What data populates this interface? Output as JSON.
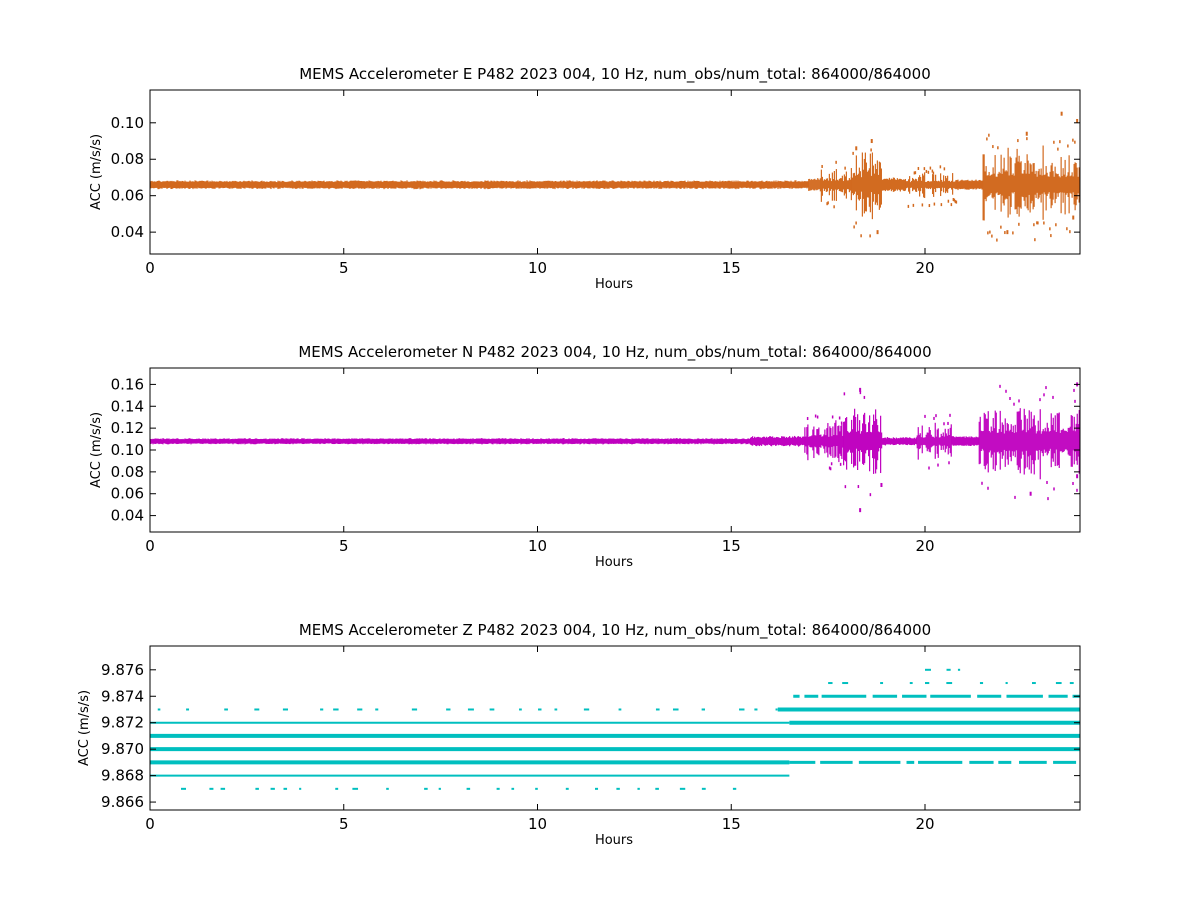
{
  "figure": {
    "background": "#ffffff"
  },
  "chart_data": [
    {
      "type": "scatter",
      "title": "MEMS Accelerometer E P482 2023 004, 10 Hz, num_obs/num_total: 864000/864000",
      "xlabel": "Hours",
      "ylabel": "ACC (m/s/s)",
      "xlim": [
        0,
        24
      ],
      "ylim": [
        0.028,
        0.118
      ],
      "xticks": [
        0,
        5,
        10,
        15,
        20
      ],
      "xtick_labels": [
        "0",
        "5",
        "10",
        "15",
        "20"
      ],
      "yticks": [
        0.04,
        0.06,
        0.08,
        0.1
      ],
      "ytick_labels": [
        "0.04",
        "0.06",
        "0.08",
        "0.10"
      ],
      "color": "#d2691e",
      "grid": false,
      "baseline": 0.066,
      "segments": [
        {
          "x": [
            0,
            17.0
          ],
          "half_range": 0.0025
        },
        {
          "x": [
            17.0,
            17.3
          ],
          "half_range": 0.004
        },
        {
          "x": [
            17.3,
            18.1
          ],
          "half_range": 0.01
        },
        {
          "x": [
            18.1,
            18.9
          ],
          "half_range": 0.02
        },
        {
          "x": [
            18.9,
            19.5
          ],
          "half_range": 0.004
        },
        {
          "x": [
            19.5,
            20.8
          ],
          "half_range": 0.008
        },
        {
          "x": [
            20.8,
            21.5
          ],
          "half_range": 0.003
        },
        {
          "x": [
            21.5,
            24.0
          ],
          "half_range": 0.022
        }
      ],
      "outliers": [
        {
          "x": 18.2,
          "y": 0.086
        },
        {
          "x": 18.6,
          "y": 0.09
        },
        {
          "x": 18.75,
          "y": 0.04
        },
        {
          "x": 22.1,
          "y": 0.04
        },
        {
          "x": 22.6,
          "y": 0.094
        },
        {
          "x": 23.5,
          "y": 0.105
        },
        {
          "x": 23.9,
          "y": 0.101
        },
        {
          "x": 23.8,
          "y": 0.048
        }
      ]
    },
    {
      "type": "scatter",
      "title": "MEMS Accelerometer N P482 2023 004, 10 Hz, num_obs/num_total: 864000/864000",
      "xlabel": "Hours",
      "ylabel": "ACC (m/s/s)",
      "xlim": [
        0,
        24
      ],
      "ylim": [
        0.025,
        0.175
      ],
      "xticks": [
        0,
        5,
        10,
        15,
        20
      ],
      "xtick_labels": [
        "0",
        "5",
        "10",
        "15",
        "20"
      ],
      "yticks": [
        0.04,
        0.06,
        0.08,
        0.1,
        0.12,
        0.14,
        0.16
      ],
      "ytick_labels": [
        "0.04",
        "0.06",
        "0.08",
        "0.10",
        "0.12",
        "0.14",
        "0.16"
      ],
      "color": "#bf00bf",
      "grid": false,
      "baseline": 0.108,
      "segments": [
        {
          "x": [
            0,
            15.5
          ],
          "half_range": 0.003
        },
        {
          "x": [
            15.5,
            16.9
          ],
          "half_range": 0.005
        },
        {
          "x": [
            16.9,
            17.9
          ],
          "half_range": 0.02
        },
        {
          "x": [
            17.9,
            18.9
          ],
          "half_range": 0.035
        },
        {
          "x": [
            18.9,
            19.8
          ],
          "half_range": 0.004
        },
        {
          "x": [
            19.8,
            20.7
          ],
          "half_range": 0.018
        },
        {
          "x": [
            20.7,
            21.4
          ],
          "half_range": 0.005
        },
        {
          "x": [
            21.4,
            24.0
          ],
          "half_range": 0.038
        }
      ],
      "outliers": [
        {
          "x": 18.3,
          "y": 0.045
        },
        {
          "x": 18.3,
          "y": 0.155
        },
        {
          "x": 18.85,
          "y": 0.068
        },
        {
          "x": 22.7,
          "y": 0.06
        },
        {
          "x": 23.9,
          "y": 0.16
        },
        {
          "x": 23.9,
          "y": 0.076
        }
      ]
    },
    {
      "type": "scatter",
      "title": "MEMS Accelerometer Z P482 2023 004, 10 Hz, num_obs/num_total: 864000/864000",
      "xlabel": "Hours",
      "ylabel": "ACC (m/s/s)",
      "xlim": [
        0,
        24
      ],
      "ylim": [
        9.8654,
        9.8778
      ],
      "xticks": [
        0,
        5,
        10,
        15,
        20
      ],
      "xtick_labels": [
        "0",
        "5",
        "10",
        "15",
        "20"
      ],
      "yticks": [
        9.866,
        9.868,
        9.87,
        9.872,
        9.874,
        9.876
      ],
      "ytick_labels": [
        "9.866",
        "9.868",
        "9.870",
        "9.872",
        "9.874",
        "9.876"
      ],
      "color": "#00bfbf",
      "grid": false,
      "levels": [
        {
          "y": 9.876,
          "style": "sparse",
          "ranges": [
            [
              20.0,
              21.7
            ]
          ]
        },
        {
          "y": 9.875,
          "style": "sparse",
          "ranges": [
            [
              17.5,
              24.0
            ]
          ]
        },
        {
          "y": 9.874,
          "style": "medium",
          "ranges": [
            [
              16.6,
              24.0
            ]
          ]
        },
        {
          "y": 9.873,
          "style": "sparse",
          "ranges": [
            [
              0.2,
              16.2
            ]
          ]
        },
        {
          "y": 9.873,
          "style": "thick",
          "ranges": [
            [
              16.2,
              24.0
            ]
          ]
        },
        {
          "y": 9.872,
          "style": "thin",
          "ranges": [
            [
              0,
              16.5
            ]
          ]
        },
        {
          "y": 9.872,
          "style": "thick",
          "ranges": [
            [
              16.5,
              24.0
            ]
          ]
        },
        {
          "y": 9.871,
          "style": "thick",
          "ranges": [
            [
              0,
              24.0
            ]
          ]
        },
        {
          "y": 9.87,
          "style": "thick",
          "ranges": [
            [
              0,
              24.0
            ]
          ]
        },
        {
          "y": 9.869,
          "style": "thick",
          "ranges": [
            [
              0,
              16.5
            ]
          ]
        },
        {
          "y": 9.869,
          "style": "medium",
          "ranges": [
            [
              16.5,
              24.0
            ]
          ]
        },
        {
          "y": 9.868,
          "style": "thin",
          "ranges": [
            [
              0,
              16.5
            ]
          ]
        },
        {
          "y": 9.867,
          "style": "sparse",
          "ranges": [
            [
              0.8,
              15.5
            ]
          ]
        }
      ]
    }
  ]
}
